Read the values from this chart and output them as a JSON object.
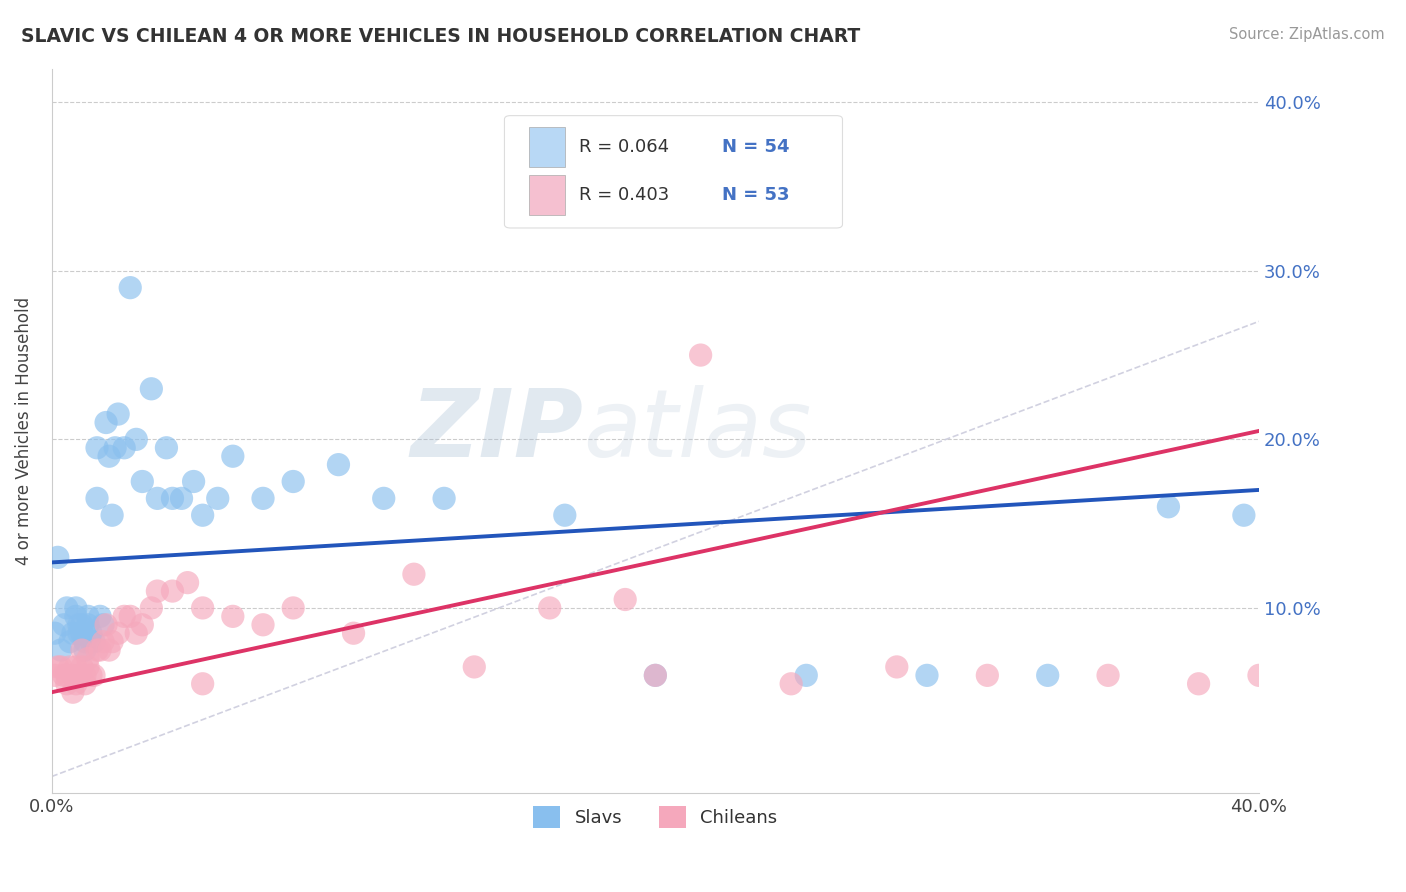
{
  "title": "SLAVIC VS CHILEAN 4 OR MORE VEHICLES IN HOUSEHOLD CORRELATION CHART",
  "source": "Source: ZipAtlas.com",
  "ylabel": "4 or more Vehicles in Household",
  "slavs_color": "#89BFEE",
  "chileans_color": "#F5A8BC",
  "slavs_line_color": "#2255BB",
  "chileans_line_color": "#DD3366",
  "dash_line_color": "#CCCCDD",
  "legend_color1": "#B8D8F5",
  "legend_color2": "#F5C0D0",
  "watermark_color": "#CCCCDD",
  "slavs_x": [
    0.001,
    0.002,
    0.003,
    0.004,
    0.005,
    0.006,
    0.007,
    0.008,
    0.008,
    0.009,
    0.009,
    0.01,
    0.01,
    0.011,
    0.011,
    0.012,
    0.012,
    0.013,
    0.013,
    0.014,
    0.015,
    0.015,
    0.016,
    0.017,
    0.018,
    0.019,
    0.02,
    0.021,
    0.022,
    0.024,
    0.026,
    0.028,
    0.03,
    0.033,
    0.035,
    0.038,
    0.04,
    0.043,
    0.047,
    0.05,
    0.055,
    0.06,
    0.07,
    0.08,
    0.095,
    0.11,
    0.13,
    0.17,
    0.2,
    0.25,
    0.29,
    0.33,
    0.37,
    0.395
  ],
  "slavs_y": [
    0.085,
    0.13,
    0.075,
    0.09,
    0.1,
    0.08,
    0.085,
    0.095,
    0.1,
    0.09,
    0.085,
    0.09,
    0.085,
    0.08,
    0.075,
    0.09,
    0.095,
    0.085,
    0.08,
    0.08,
    0.195,
    0.165,
    0.095,
    0.09,
    0.21,
    0.19,
    0.155,
    0.195,
    0.215,
    0.195,
    0.29,
    0.2,
    0.175,
    0.23,
    0.165,
    0.195,
    0.165,
    0.165,
    0.175,
    0.155,
    0.165,
    0.19,
    0.165,
    0.175,
    0.185,
    0.165,
    0.165,
    0.155,
    0.06,
    0.06,
    0.06,
    0.06,
    0.16,
    0.155
  ],
  "chileans_x": [
    0.001,
    0.002,
    0.003,
    0.004,
    0.005,
    0.005,
    0.006,
    0.007,
    0.007,
    0.008,
    0.008,
    0.009,
    0.01,
    0.01,
    0.011,
    0.011,
    0.012,
    0.012,
    0.013,
    0.014,
    0.015,
    0.016,
    0.017,
    0.018,
    0.019,
    0.02,
    0.022,
    0.024,
    0.026,
    0.028,
    0.03,
    0.033,
    0.035,
    0.04,
    0.045,
    0.05,
    0.06,
    0.07,
    0.08,
    0.1,
    0.12,
    0.14,
    0.165,
    0.19,
    0.215,
    0.245,
    0.28,
    0.31,
    0.35,
    0.38,
    0.4,
    0.05,
    0.2
  ],
  "chileans_y": [
    0.06,
    0.065,
    0.065,
    0.06,
    0.06,
    0.055,
    0.065,
    0.06,
    0.05,
    0.065,
    0.055,
    0.06,
    0.065,
    0.075,
    0.06,
    0.055,
    0.065,
    0.07,
    0.06,
    0.06,
    0.075,
    0.075,
    0.08,
    0.09,
    0.075,
    0.08,
    0.085,
    0.095,
    0.095,
    0.085,
    0.09,
    0.1,
    0.11,
    0.11,
    0.115,
    0.1,
    0.095,
    0.09,
    0.1,
    0.085,
    0.12,
    0.065,
    0.1,
    0.105,
    0.25,
    0.055,
    0.065,
    0.06,
    0.06,
    0.055,
    0.06,
    0.055,
    0.06
  ],
  "slavs_line": [
    0.127,
    0.17
  ],
  "chileans_line": [
    0.05,
    0.205
  ],
  "xlim": [
    0.0,
    0.4
  ],
  "ylim": [
    -0.01,
    0.42
  ],
  "grid_lines": [
    0.1,
    0.2,
    0.3,
    0.4
  ],
  "right_ytick_labels": [
    "10.0%",
    "20.0%",
    "30.0%",
    "40.0%"
  ],
  "right_ytick_values": [
    0.1,
    0.2,
    0.3,
    0.4
  ],
  "xtick_labels_show": [
    "0.0%",
    "40.0%"
  ],
  "xtick_labels_values": [
    0.0,
    0.4
  ]
}
